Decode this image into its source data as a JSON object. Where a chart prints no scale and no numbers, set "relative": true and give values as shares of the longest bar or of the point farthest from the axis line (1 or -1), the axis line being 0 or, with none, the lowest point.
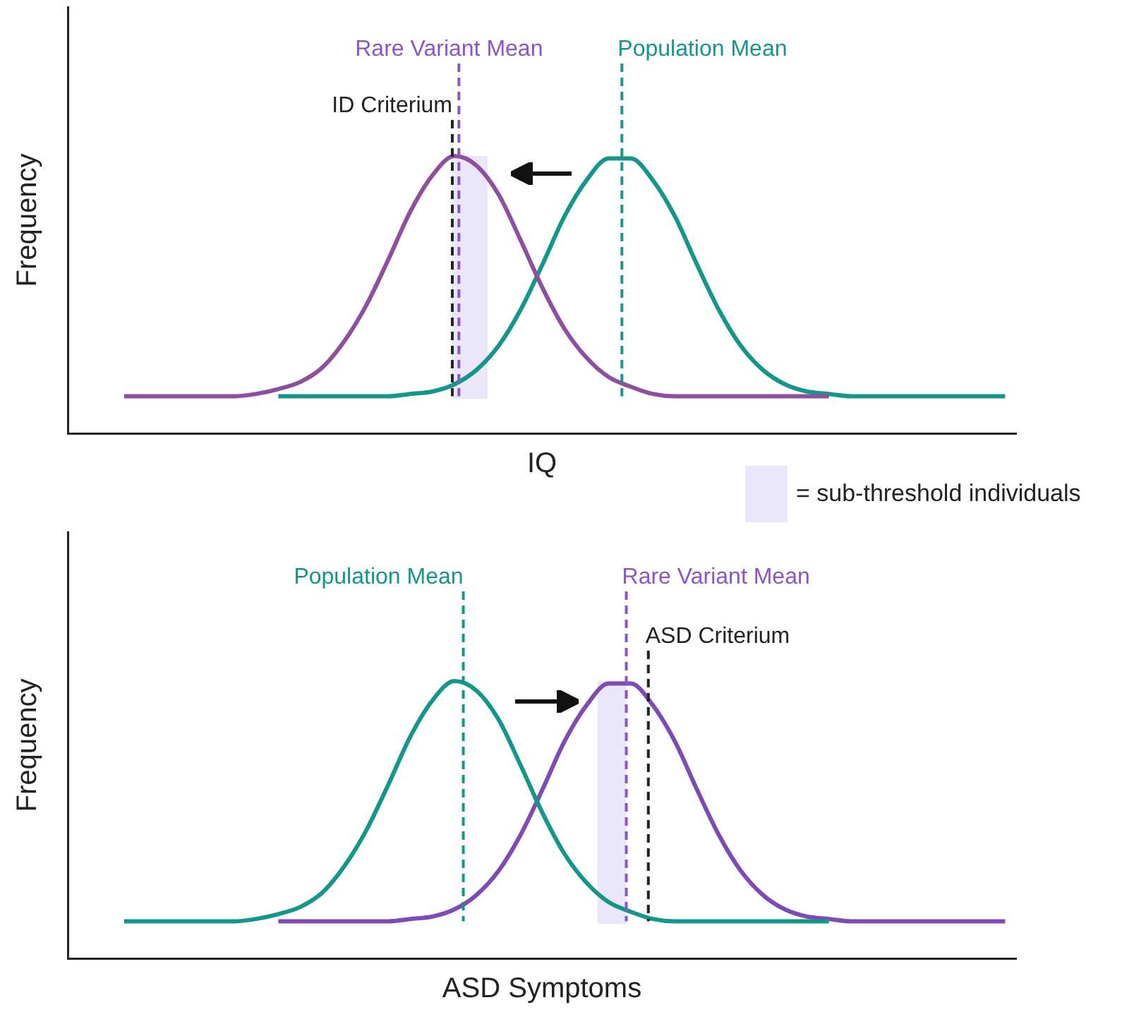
{
  "chart_data": [
    {
      "type": "line",
      "relative": true,
      "tick_labels": false,
      "marker": "none",
      "xlabel": "IQ",
      "ylabel": "Frequency",
      "categories": [
        null,
        null,
        null,
        null,
        null,
        null,
        null,
        null,
        null,
        null,
        null,
        null,
        null,
        null,
        null,
        null,
        null,
        null,
        null,
        null,
        null,
        null,
        null,
        null,
        null,
        null,
        null,
        null,
        null,
        null,
        null,
        null,
        null,
        null,
        null,
        null,
        null,
        null,
        null,
        null,
        null
      ],
      "series": [
        {
          "color": "#8e4f9f",
          "values": [
            0,
            0,
            0,
            0,
            0,
            0,
            0.01,
            0.03,
            0.06,
            0.12,
            0.23,
            0.38,
            0.57,
            0.77,
            0.92,
            1,
            0.96,
            0.84,
            0.65,
            0.45,
            0.28,
            0.16,
            0.08,
            0.04,
            0.01,
            0,
            0,
            0,
            0,
            0,
            0,
            0,
            0,
            null,
            null,
            null,
            null,
            null,
            null,
            null,
            null
          ]
        },
        {
          "color": "#14968a",
          "values": [
            null,
            null,
            null,
            null,
            null,
            null,
            null,
            0,
            0,
            0,
            0,
            0,
            0,
            0.01,
            0.02,
            0.05,
            0.11,
            0.21,
            0.36,
            0.55,
            0.75,
            0.9,
            0.99,
            0.99,
            0.9,
            0.75,
            0.55,
            0.36,
            0.21,
            0.11,
            0.05,
            0.02,
            0.01,
            0,
            0,
            0,
            0,
            0,
            0,
            0,
            0
          ]
        }
      ],
      "annotations": [
        "Rare Variant Mean",
        "Population Mean",
        "ID Criterium",
        "= sub-threshold individuals"
      ]
    },
    {
      "type": "line",
      "relative": true,
      "tick_labels": false,
      "marker": "none",
      "xlabel": "ASD Symptoms",
      "ylabel": "Frequency",
      "categories": [
        null,
        null,
        null,
        null,
        null,
        null,
        null,
        null,
        null,
        null,
        null,
        null,
        null,
        null,
        null,
        null,
        null,
        null,
        null,
        null,
        null,
        null,
        null,
        null,
        null,
        null,
        null,
        null,
        null,
        null,
        null,
        null,
        null,
        null,
        null,
        null,
        null,
        null,
        null,
        null,
        null
      ],
      "series": [
        {
          "color": "#14968a",
          "values": [
            0,
            0,
            0,
            0,
            0,
            0,
            0.01,
            0.03,
            0.06,
            0.12,
            0.23,
            0.38,
            0.57,
            0.77,
            0.92,
            1,
            0.96,
            0.84,
            0.65,
            0.45,
            0.28,
            0.16,
            0.08,
            0.04,
            0.01,
            0,
            0,
            0,
            0,
            0,
            0,
            0,
            0,
            null,
            null,
            null,
            null,
            null,
            null,
            null,
            null
          ]
        },
        {
          "color": "#7d4bb3",
          "values": [
            null,
            null,
            null,
            null,
            null,
            null,
            null,
            0,
            0,
            0,
            0,
            0,
            0,
            0.01,
            0.02,
            0.05,
            0.11,
            0.21,
            0.36,
            0.55,
            0.75,
            0.9,
            0.99,
            0.99,
            0.9,
            0.75,
            0.55,
            0.36,
            0.21,
            0.11,
            0.05,
            0.02,
            0.01,
            0,
            0,
            0,
            0,
            0,
            0,
            0,
            0
          ]
        }
      ],
      "annotations": [
        "Population Mean",
        "Rare Variant Mean",
        "ASD Criterium"
      ]
    }
  ]
}
